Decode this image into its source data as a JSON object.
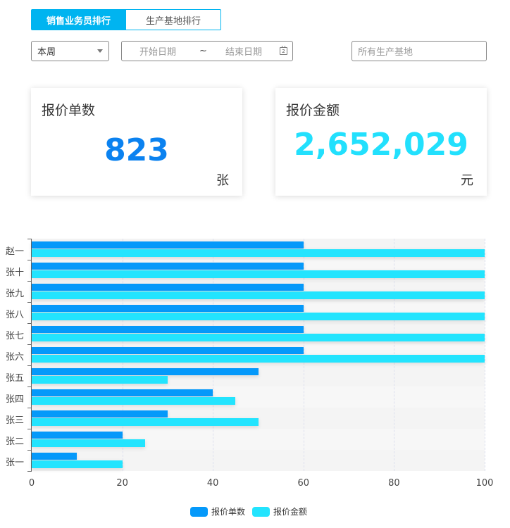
{
  "tabs": [
    {
      "label": "销售业务员排行",
      "active": true
    },
    {
      "label": "生产基地排行",
      "active": false
    }
  ],
  "filters": {
    "period_select": {
      "value": "本周"
    },
    "date_range": {
      "start_placeholder": "开始日期",
      "separator": "~",
      "end_placeholder": "结束日期",
      "icon": "calendar-icon",
      "icon_text": "2"
    },
    "base_input": {
      "placeholder": "所有生产基地"
    }
  },
  "cards": [
    {
      "title": "报价单数",
      "value": "823",
      "unit": "张",
      "color": "#0b82f0"
    },
    {
      "title": "报价金额",
      "value": "2,652,029",
      "unit": "元",
      "color": "#22e0fd"
    }
  ],
  "colors": {
    "series0": "#0599fa",
    "series1": "#23e4fe",
    "tab_active": "#00b4f0"
  },
  "chart_data": {
    "type": "bar",
    "orientation": "horizontal",
    "categories": [
      "赵一",
      "张十",
      "张九",
      "张八",
      "张七",
      "张六",
      "张五",
      "张四",
      "张三",
      "张二",
      "张一"
    ],
    "series": [
      {
        "name": "报价单数",
        "values": [
          60,
          60,
          60,
          60,
          60,
          60,
          50,
          40,
          30,
          20,
          10
        ]
      },
      {
        "name": "报价金额",
        "values": [
          100,
          100,
          100,
          100,
          100,
          100,
          30,
          45,
          50,
          25,
          20
        ]
      }
    ],
    "xticks": [
      "0",
      "20",
      "40",
      "60",
      "80",
      "100"
    ],
    "xlim": [
      0,
      100
    ],
    "grid": "vertical dashed",
    "legend_position": "bottom"
  }
}
